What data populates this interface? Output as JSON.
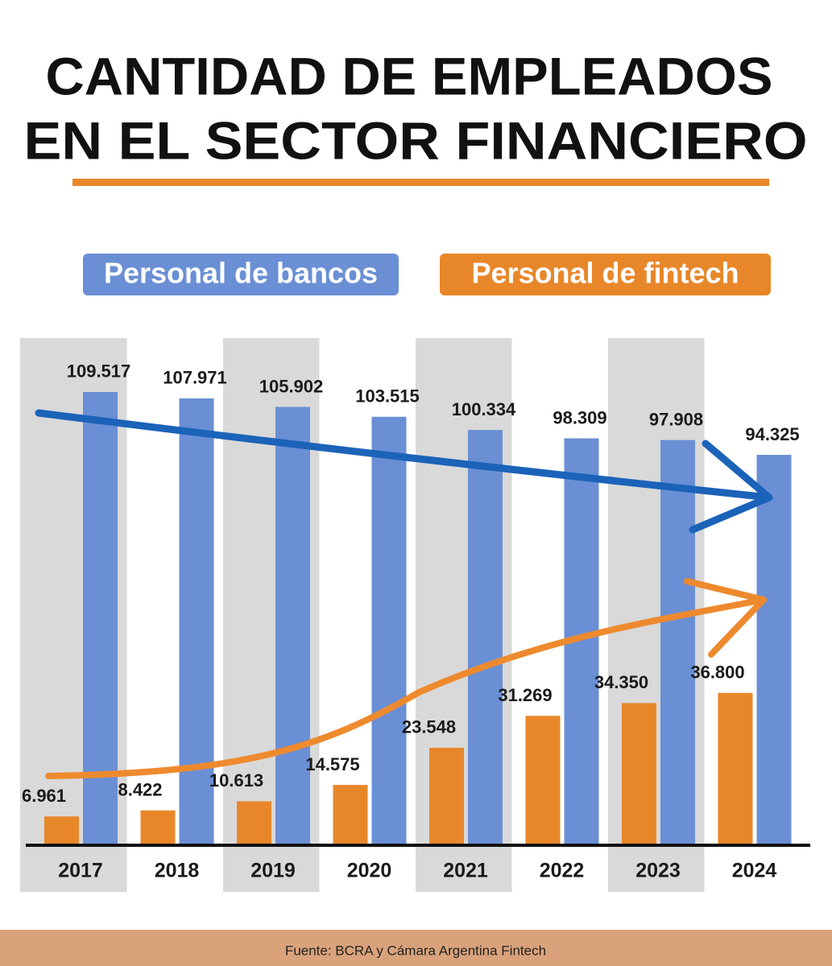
{
  "title_lines": [
    "CANTIDAD DE EMPLEADOS",
    "EN EL SECTOR FINANCIERO"
  ],
  "source": "Fuente: BCRA y Cámara Argentina Fintech",
  "chart_data": {
    "type": "bar",
    "categories": [
      "2017",
      "2018",
      "2019",
      "2020",
      "2021",
      "2022",
      "2023",
      "2024"
    ],
    "series": [
      {
        "name": "Personal de bancos",
        "color": "#6a8fd4",
        "values": [
          109517,
          107971,
          105902,
          103515,
          100334,
          98309,
          97908,
          94325
        ],
        "value_labels": [
          "109.517",
          "107.971",
          "105.902",
          "103.515",
          "100.334",
          "98.309",
          "97.908",
          "94.325"
        ]
      },
      {
        "name": "Personal de fintech",
        "color": "#e8872a",
        "values": [
          6961,
          8422,
          10613,
          14575,
          23548,
          31269,
          34350,
          36800
        ],
        "value_labels": [
          "6.961",
          "8.422",
          "10.613",
          "14.575",
          "23.548",
          "31.269",
          "34.350",
          "36.800"
        ]
      }
    ],
    "ylim": [
      0,
      120000
    ]
  }
}
